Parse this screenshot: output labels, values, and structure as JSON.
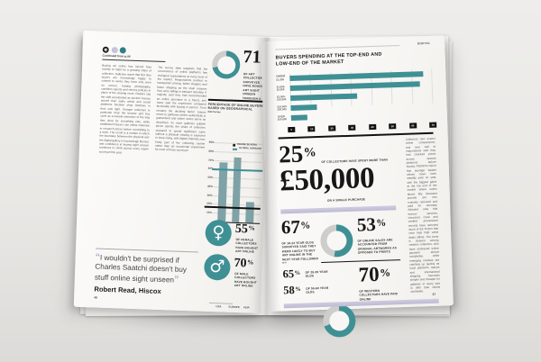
{
  "colors": {
    "teal": "#3f9094",
    "bar_muted": "#7fa2a6",
    "lavender": "#c3c1d8",
    "ink": "#171717",
    "donut_track": "#cdcdcb"
  },
  "magazine": {
    "left_page": {
      "brand_dots": [
        {
          "name": "brand-dot-dark",
          "color": "#1f2123"
        },
        {
          "name": "brand-dot-lavender",
          "color": "#c6c4da"
        },
        {
          "name": "brand-dot-teal",
          "color": "#2f7f84"
        }
      ],
      "kicker": "Continued from p.44",
      "body_columns": [
        "Buying art online has moved from novelty to habit for a growing share of collectors. Galleries report that first time buyers are increasingly happy to commit to works they have only seen on screen, trusting photography, condition reports and returns policies in place of the viewing room. Dealers say the shift accelerated as auction houses moved their sales online and social platforms became shop windows in their own right. Younger collectors in particular treat the browse and buy cycle as a natural extension of the way they shop for everything else, while established buyers use online channels to research prices before committing to a work. The result is a market in which the boundary between the physical and the digital gallery is increasingly blurred, and confidence in buying sight unseen continues to climb across every region surveyed this year.",
        "The survey data suggests that the convenience of online platforms has reshaped expectations at every level of the market. Respondents pointed to transparent pricing, better imagery and faster shipping as the main reasons they were willing to transact remotely. A majority said they had recommended an online purchase to a friend, and many said the experience compared favourably with buying in person. Trust remains the deciding factor: buyers return to platforms where authenticity is guaranteed and where works arrive as described. As more galleries publish prices openly, the share of collectors prepared to spend significant sums without a physical viewing is expected to keep rising, with digital channels now firmly part of the collecting routine rather than an occasional experiment for most of those surveyed."
      ],
      "stat_unseen": {
        "value": "71",
        "unit": "%",
        "donut_percent": 71,
        "caption": "OF ART COLLECTORS SURVEYED HAVE BOUGHT ART SIGHT UNSEEN THROUGH A WEBSITE"
      },
      "quote": {
        "open_mark": "“",
        "close_mark": "”",
        "text": "I wouldn't be surprised if Charles Saatchi doesn't buy stuff online sight unseen",
        "attribution": "Robert Read, Hiscox"
      },
      "stat_female": {
        "value": "55",
        "unit": "%",
        "symbol": "♀",
        "caption": "OF FEMALE COLLECTORS HAVE BOUGHT ART ONLINE"
      },
      "stat_male": {
        "value": "70",
        "unit": "%",
        "symbol": "♂",
        "caption": "OF MALE COLLECTORS HAVE BOUGHT ART ONLINE"
      },
      "page_number": "46"
    },
    "right_page": {
      "section_label": "DIGITAL",
      "stat_spend": {
        "value": "25",
        "unit": "%",
        "caption": "OF COLLECTORS HAVE SPENT MORE THAN",
        "amount": "£50,000",
        "amount_caption": "ON A SINGLE PURCHASE"
      },
      "stat_young": {
        "value": "67",
        "unit": "%",
        "caption": "OF 18-24 YEAR OLDS SURVEYED SAID THEY WERE LIKELY TO BUY ART ONLINE IN THE NEXT YEAR FOLLOWED BY..."
      },
      "stat_originals": {
        "value": "53",
        "unit": "%",
        "donut_percent": 53,
        "caption": "OF ONLINE SALES ARE ACCOUNTED FROM ORIGINAL ARTWORKS AS OPPOSED TO PRINTS"
      },
      "stat_25_39": {
        "value": "65",
        "unit": "%",
        "caption": "OF 25-39 YEAR OLDS"
      },
      "stat_50_60": {
        "value": "58",
        "unit": "%",
        "caption": "OF 50-60 YEAR OLDS"
      },
      "stat_paid_online": {
        "value": "70",
        "unit": "%",
        "donut_percent": 70,
        "caption": "OF WESTERN COLLECTORS HAVE PAID ONLINE"
      },
      "body_column": "Collectors now expect online comparisons, and over half of respondents said they had checked prices across several platforms before buying. Platforms report that average basket values have risen steadily year on year, with the biggest gains at the top end of the market where works above fifty thousand pounds are now routinely reserved and paid for remotely. Advisers note that escrow services, insurance cover and verified provenance records have removed much of the friction that once kept high value deals offline. The trend is clearest among western collectors, who have embraced online payment almost completely, while emerging markets are catching up quickly as local platforms mature and international shipping becomes simpler and cheaper for galleries of every size to offer their clients worldwide.",
      "page_number": "47"
    }
  },
  "chart_data": [
    {
      "type": "bar",
      "title": "PERCENTAGE OF ONLINE BUYERS BASED ON GEOGRAPHICAL REGION",
      "categories": [
        "USA",
        "EUROPE",
        "ASIA"
      ],
      "values": [
        68,
        74,
        24
      ],
      "ylim": [
        0,
        90
      ],
      "yticks": [
        "90%",
        "80%",
        "70%",
        "60%",
        "50%",
        "40%",
        "30%",
        "20%",
        "10%"
      ],
      "reference_line": {
        "value": 60,
        "label": "GLOBAL AVERAGE"
      },
      "legend": [
        {
          "marker": "dot",
          "label": "ONLINE BUYERS"
        },
        {
          "marker": "line",
          "label": "GLOBAL AVERAGE"
        }
      ],
      "legend_position": "top-right",
      "grid": true,
      "bar_color": "#7fa2a6",
      "line_color": "#3f9094"
    },
    {
      "type": "horizontal-bar",
      "title": "BUYERS SPENDING AT THE TOP-END AND LOW-END OF THE MARKET",
      "categories": [
        "UNDER £1,000",
        "£1,000-£5,000",
        "£5,000-£10,000",
        "£10,000-£50,000",
        "OVER £50,000"
      ],
      "values": [
        66,
        64,
        33,
        13,
        8
      ],
      "xlim": [
        0,
        70
      ],
      "xticks": [
        "0",
        "10",
        "20",
        "30",
        "40",
        "50",
        "60",
        "70"
      ],
      "grid": true,
      "bar_color": "#3f9094"
    }
  ]
}
